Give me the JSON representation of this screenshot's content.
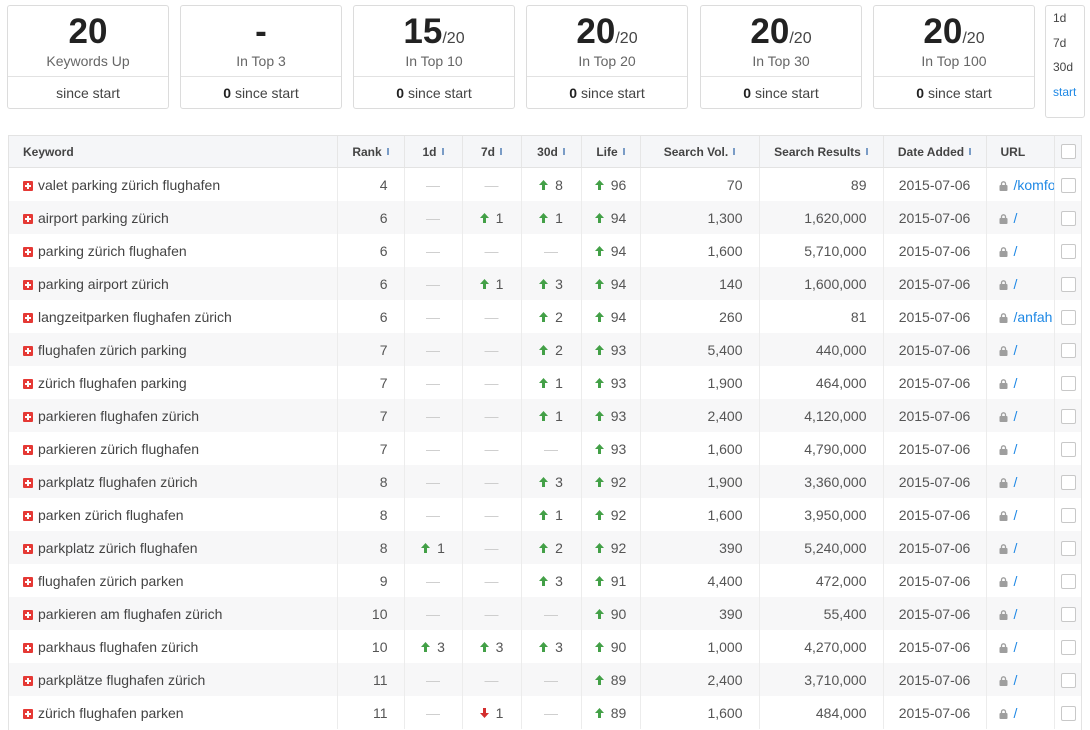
{
  "summary_cards": [
    {
      "value": "20",
      "label": "Keywords Up",
      "footer": "since start"
    },
    {
      "value": "-",
      "label": "In Top 3",
      "count": "0",
      "footer": "since start"
    },
    {
      "value": "15",
      "suffix": "/20",
      "label": "In Top 10",
      "count": "0",
      "footer": "since start"
    },
    {
      "value": "20",
      "suffix": "/20",
      "label": "In Top 20",
      "count": "0",
      "footer": "since start"
    },
    {
      "value": "20",
      "suffix": "/20",
      "label": "In Top 30",
      "count": "0",
      "footer": "since start"
    },
    {
      "value": "20",
      "suffix": "/20",
      "label": "In Top 100",
      "count": "0",
      "footer": "since start"
    }
  ],
  "periods": {
    "options": [
      "1d",
      "7d",
      "30d",
      "start"
    ],
    "active": "start"
  },
  "table": {
    "headers": [
      "Keyword",
      "Rank",
      "1d",
      "7d",
      "30d",
      "Life",
      "Search Vol.",
      "Search Results",
      "Date Added",
      "URL"
    ],
    "rows": [
      {
        "keyword": "valet parking zürich flughafen",
        "rank": "4",
        "d1": "—",
        "d7": "—",
        "d30": {
          "trend": "up",
          "value": "8"
        },
        "life": {
          "trend": "up",
          "value": "96"
        },
        "volume": "70",
        "results": "89",
        "date": "2015-07-06",
        "url": "/komfo"
      },
      {
        "keyword": "airport parking zürich",
        "rank": "6",
        "d1": "—",
        "d7": {
          "trend": "up",
          "value": "1"
        },
        "d30": {
          "trend": "up",
          "value": "1"
        },
        "life": {
          "trend": "up",
          "value": "94"
        },
        "volume": "1,300",
        "results": "1,620,000",
        "date": "2015-07-06",
        "url": "/"
      },
      {
        "keyword": "parking zürich flughafen",
        "rank": "6",
        "d1": "—",
        "d7": "—",
        "d30": "—",
        "life": {
          "trend": "up",
          "value": "94"
        },
        "volume": "1,600",
        "results": "5,710,000",
        "date": "2015-07-06",
        "url": "/"
      },
      {
        "keyword": "parking airport zürich",
        "rank": "6",
        "d1": "—",
        "d7": {
          "trend": "up",
          "value": "1"
        },
        "d30": {
          "trend": "up",
          "value": "3"
        },
        "life": {
          "trend": "up",
          "value": "94"
        },
        "volume": "140",
        "results": "1,600,000",
        "date": "2015-07-06",
        "url": "/"
      },
      {
        "keyword": "langzeitparken flughafen zürich",
        "rank": "6",
        "d1": "—",
        "d7": "—",
        "d30": {
          "trend": "up",
          "value": "2"
        },
        "life": {
          "trend": "up",
          "value": "94"
        },
        "volume": "260",
        "results": "81",
        "date": "2015-07-06",
        "url": "/anfah"
      },
      {
        "keyword": "flughafen zürich parking",
        "rank": "7",
        "d1": "—",
        "d7": "—",
        "d30": {
          "trend": "up",
          "value": "2"
        },
        "life": {
          "trend": "up",
          "value": "93"
        },
        "volume": "5,400",
        "results": "440,000",
        "date": "2015-07-06",
        "url": "/"
      },
      {
        "keyword": "zürich flughafen parking",
        "rank": "7",
        "d1": "—",
        "d7": "—",
        "d30": {
          "trend": "up",
          "value": "1"
        },
        "life": {
          "trend": "up",
          "value": "93"
        },
        "volume": "1,900",
        "results": "464,000",
        "date": "2015-07-06",
        "url": "/"
      },
      {
        "keyword": "parkieren flughafen zürich",
        "rank": "7",
        "d1": "—",
        "d7": "—",
        "d30": {
          "trend": "up",
          "value": "1"
        },
        "life": {
          "trend": "up",
          "value": "93"
        },
        "volume": "2,400",
        "results": "4,120,000",
        "date": "2015-07-06",
        "url": "/"
      },
      {
        "keyword": "parkieren zürich flughafen",
        "rank": "7",
        "d1": "—",
        "d7": "—",
        "d30": "—",
        "life": {
          "trend": "up",
          "value": "93"
        },
        "volume": "1,600",
        "results": "4,790,000",
        "date": "2015-07-06",
        "url": "/"
      },
      {
        "keyword": "parkplatz flughafen zürich",
        "rank": "8",
        "d1": "—",
        "d7": "—",
        "d30": {
          "trend": "up",
          "value": "3"
        },
        "life": {
          "trend": "up",
          "value": "92"
        },
        "volume": "1,900",
        "results": "3,360,000",
        "date": "2015-07-06",
        "url": "/"
      },
      {
        "keyword": "parken zürich flughafen",
        "rank": "8",
        "d1": "—",
        "d7": "—",
        "d30": {
          "trend": "up",
          "value": "1"
        },
        "life": {
          "trend": "up",
          "value": "92"
        },
        "volume": "1,600",
        "results": "3,950,000",
        "date": "2015-07-06",
        "url": "/"
      },
      {
        "keyword": "parkplatz zürich flughafen",
        "rank": "8",
        "d1": {
          "trend": "up",
          "value": "1"
        },
        "d7": "—",
        "d30": {
          "trend": "up",
          "value": "2"
        },
        "life": {
          "trend": "up",
          "value": "92"
        },
        "volume": "390",
        "results": "5,240,000",
        "date": "2015-07-06",
        "url": "/"
      },
      {
        "keyword": "flughafen zürich parken",
        "rank": "9",
        "d1": "—",
        "d7": "—",
        "d30": {
          "trend": "up",
          "value": "3"
        },
        "life": {
          "trend": "up",
          "value": "91"
        },
        "volume": "4,400",
        "results": "472,000",
        "date": "2015-07-06",
        "url": "/"
      },
      {
        "keyword": "parkieren am flughafen zürich",
        "rank": "10",
        "d1": "—",
        "d7": "—",
        "d30": "—",
        "life": {
          "trend": "up",
          "value": "90"
        },
        "volume": "390",
        "results": "55,400",
        "date": "2015-07-06",
        "url": "/"
      },
      {
        "keyword": "parkhaus flughafen zürich",
        "rank": "10",
        "d1": {
          "trend": "up",
          "value": "3"
        },
        "d7": {
          "trend": "up",
          "value": "3"
        },
        "d30": {
          "trend": "up",
          "value": "3"
        },
        "life": {
          "trend": "up",
          "value": "90"
        },
        "volume": "1,000",
        "results": "4,270,000",
        "date": "2015-07-06",
        "url": "/"
      },
      {
        "keyword": "parkplätze flughafen zürich",
        "rank": "11",
        "d1": "—",
        "d7": "—",
        "d30": "—",
        "life": {
          "trend": "up",
          "value": "89"
        },
        "volume": "2,400",
        "results": "3,710,000",
        "date": "2015-07-06",
        "url": "/"
      },
      {
        "keyword": "zürich flughafen parken",
        "rank": "11",
        "d1": "—",
        "d7": {
          "trend": "down",
          "value": "1"
        },
        "d30": "—",
        "life": {
          "trend": "up",
          "value": "89"
        },
        "volume": "1,600",
        "results": "484,000",
        "date": "2015-07-06",
        "url": "/"
      }
    ]
  }
}
